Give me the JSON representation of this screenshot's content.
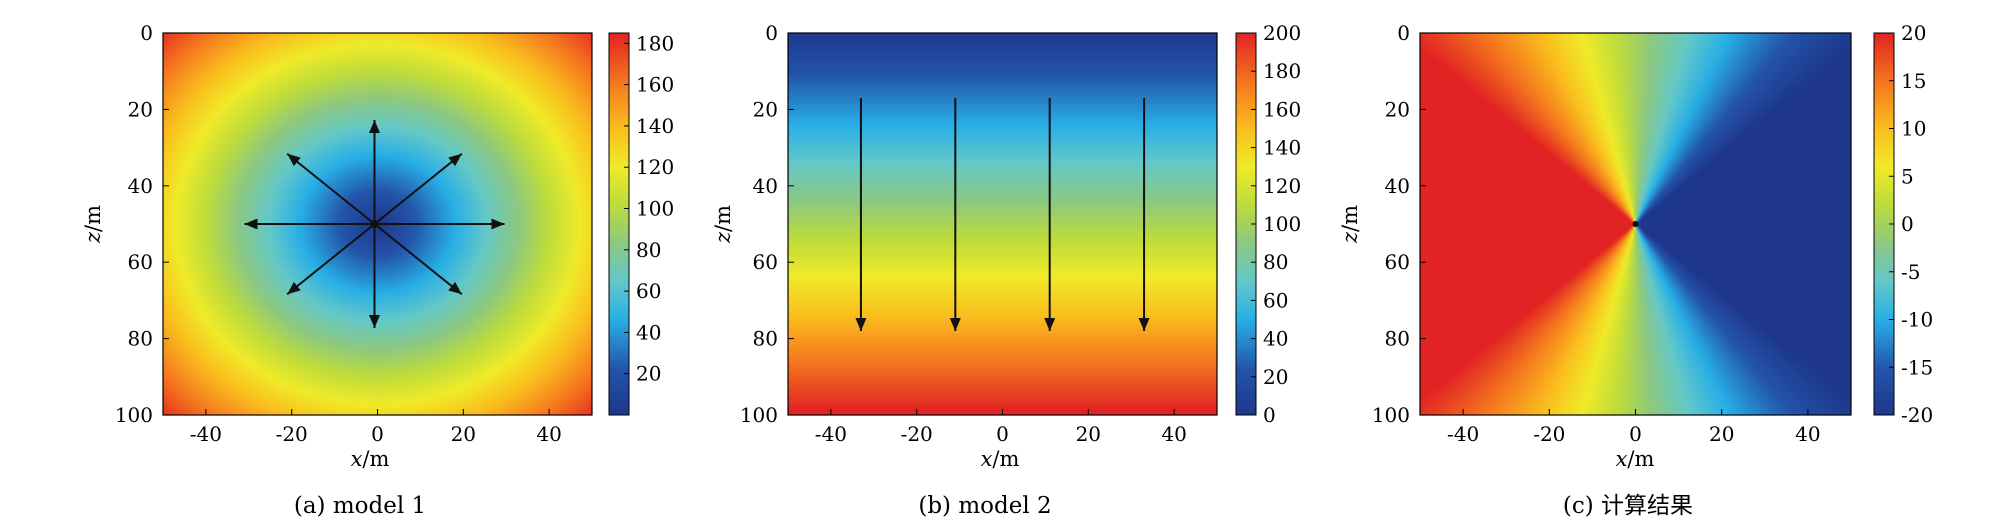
{
  "chart_data": [
    {
      "type": "heatmap",
      "caption": "(a) model 1",
      "xlabel": "x/m",
      "ylabel": "z/m",
      "xlim": [
        -50,
        50
      ],
      "ylim": [
        0,
        100
      ],
      "xticks": [
        "-40",
        "-20",
        "0",
        "20",
        "40"
      ],
      "yticks": [
        "0",
        "20",
        "40",
        "60",
        "80",
        "100"
      ],
      "colorbar": {
        "range": [
          0,
          185
        ],
        "ticks": [
          "20",
          "40",
          "60",
          "80",
          "100",
          "120",
          "140",
          "160",
          "180"
        ]
      },
      "field": "radial distance from source at (0, 50)",
      "source": [
        0,
        50
      ],
      "arrows": "8 radial directions from source"
    },
    {
      "type": "heatmap",
      "caption": "(b) model 2",
      "xlabel": "x/m",
      "ylabel": "z/m",
      "xlim": [
        -50,
        50
      ],
      "ylim": [
        0,
        100
      ],
      "xticks": [
        "-40",
        "-20",
        "0",
        "20",
        "40"
      ],
      "yticks": [
        "0",
        "20",
        "40",
        "60",
        "80",
        "100"
      ],
      "colorbar": {
        "range": [
          0,
          200
        ],
        "ticks": [
          "0",
          "20",
          "40",
          "60",
          "80",
          "100",
          "120",
          "140",
          "160",
          "180",
          "200"
        ]
      },
      "field": "increases linearly with depth z",
      "arrows_x": [
        -33,
        -11,
        11,
        33
      ],
      "arrows_z": [
        17,
        78
      ]
    },
    {
      "type": "heatmap",
      "caption": "(c) 计算结果",
      "xlabel": "x/m",
      "ylabel": "z/m",
      "xlim": [
        -50,
        50
      ],
      "ylim": [
        0,
        100
      ],
      "xticks": [
        "-40",
        "-20",
        "0",
        "20",
        "40"
      ],
      "yticks": [
        "0",
        "20",
        "40",
        "60",
        "80",
        "100"
      ],
      "colorbar": {
        "range": [
          -20,
          20
        ],
        "ticks": [
          "20",
          "15",
          "10",
          "5",
          "0",
          "-5",
          "-10",
          "-15",
          "-20"
        ]
      },
      "field": "angular difference about (0, 50)",
      "source": [
        0,
        50
      ]
    }
  ]
}
